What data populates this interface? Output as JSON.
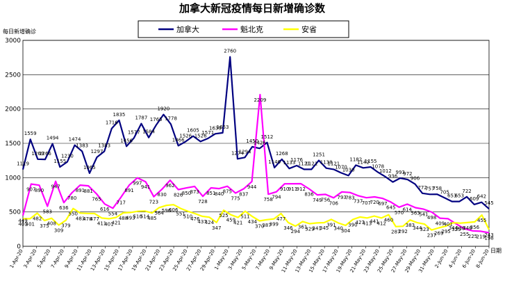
{
  "chart_data": {
    "type": "line",
    "title": "加拿大新冠疫情每日新增确诊数",
    "ylabel": "每日新增确诊",
    "xlabel": "日期",
    "ylim": [
      0,
      3000
    ],
    "yticks": [
      "0",
      "500",
      "1000",
      "1500",
      "2000",
      "2500",
      "3000"
    ],
    "grid": true,
    "legend_position": "top-center",
    "tick_labels": [
      "1-Apr-20",
      "3-Apr-20",
      "5-Apr-20",
      "7-Apr-20",
      "9-Apr-20",
      "11-Apr-20",
      "13-Apr-20",
      "15-Apr-20",
      "17-Apr-20",
      "19-Apr-20",
      "21-Apr-20",
      "23-Apr-20",
      "25-Apr-20",
      "27-Apr-20",
      "29-Apr-20",
      "1-May-20",
      "3-May-20",
      "5-May-20",
      "7-May-20",
      "9-May-20",
      "11-May-20",
      "13-May-20",
      "15-May-20",
      "17-May-20",
      "19-May-20",
      "21-May-20",
      "23-May-20",
      "25-May-20",
      "27-May-20",
      "29-May-20",
      "31-May-20",
      "2-Jun-20",
      "4-Jun-20",
      "6-Jun-20",
      "8-Jun-20"
    ],
    "series": [
      {
        "name": "加拿大",
        "color": "#000080",
        "values": [
          1119,
          1559,
          1269,
          1266,
          1494,
          1155,
          1230,
          1474,
          1383,
          1065,
          1297,
          1383,
          1716,
          1835,
          1456,
          1577,
          1787,
          1584,
          1765,
          1920,
          1778,
          1466,
          1526,
          1605,
          1526,
          1571,
          1639,
          1653,
          2760,
          1274,
          1294,
          1450,
          1426,
          1512,
          1146,
          1268,
          1133,
          1176,
          1121,
          1121,
          1251,
          1138,
          1121,
          1070,
          1030,
          1182,
          1142,
          1155,
          1078,
          1012,
          936,
          993,
          972,
          906,
          772,
          757,
          758,
          705,
          653,
          653,
          722,
          609,
          642,
          545
        ],
        "labels": [
          "1119",
          "1559",
          "1269",
          "1266",
          "1494",
          "1155",
          "1230",
          "1474",
          "1383",
          "1065",
          "1297",
          "1383",
          "1716",
          "1835",
          "1456",
          "1577",
          "1787",
          "1584",
          "1765",
          "1920",
          "1778",
          "1466",
          "1526",
          "1605",
          "1526",
          "1571",
          "1639",
          "1653",
          "2760",
          "1274",
          "1294",
          "1450",
          "1426",
          "1512",
          "1146",
          "1268",
          "1133",
          "1176",
          "1121",
          "1121",
          "1251",
          "1138",
          "1121",
          "1070",
          "1030",
          "1182",
          "1142",
          "1155",
          "1078",
          "1012",
          "936",
          "993",
          "972",
          "906",
          "772",
          "757",
          "758",
          "705",
          "653",
          "653",
          "722",
          "609",
          "642",
          "545"
        ]
      },
      {
        "name": "魁北克",
        "color": "#FF00FF",
        "values": [
          449,
          907,
          890,
          583,
          947,
          636,
          780,
          891,
          881,
          765,
          616,
          554,
          717,
          891,
          997,
          941,
          723,
          830,
          962,
          826,
          850,
          873,
          728,
          851,
          840,
          875,
          775,
          837,
          944,
          2209,
          758,
          794,
          910,
          911,
          912,
          836,
          749,
          756,
          706,
          793,
          783,
          737,
          707,
          720,
          697,
          645,
          570,
          614,
          563,
          541,
          498,
          409,
          401,
          325,
          255,
          225,
          219,
          198
        ],
        "labels": [
          "449",
          "907",
          "890",
          "583",
          "947",
          "636",
          "780",
          "891",
          "881",
          "765",
          "616",
          "554",
          "717",
          "891",
          "997",
          "941",
          "723",
          "830",
          "962",
          "826",
          "850",
          "873",
          "728",
          "851",
          "840",
          "875",
          "775",
          "837",
          "944",
          "2209",
          "758",
          "794",
          "910",
          "911",
          "912",
          "836",
          "749",
          "756",
          "706",
          "793",
          "783",
          "737",
          "707",
          "720",
          "697",
          "645",
          "570",
          "614",
          "563",
          "541",
          "498",
          "409",
          "401",
          "325",
          "255",
          "225",
          "219",
          "198"
        ]
      },
      {
        "name": "安省",
        "color": "#FFFF00",
        "values": [
          401,
          401,
          482,
          375,
          408,
          309,
          379,
          550,
          483,
          478,
          477,
          411,
          401,
          421,
          488,
          493,
          510,
          514,
          485,
          564,
          596,
          606,
          551,
          510,
          476,
          437,
          424,
          347,
          525,
          459,
          421,
          511,
          434,
          370,
          387,
          399,
          477,
          346,
          294,
          361,
          329,
          341,
          345,
          391,
          340,
          304,
          390,
          427,
          413,
          441,
          412,
          460,
          287,
          292,
          383,
          344,
          323,
          237,
          269,
          295,
          344,
          338,
          346,
          356,
          455,
          243
        ],
        "labels": [
          "401",
          "401",
          "482",
          "375",
          "408",
          "309",
          "379",
          "550",
          "483",
          "478",
          "477",
          "411",
          "401",
          "421",
          "488",
          "493",
          "510",
          "514",
          "485",
          "564",
          "596",
          "606",
          "551",
          "510",
          "476",
          "437",
          "424",
          "347",
          "525",
          "459",
          "421",
          "511",
          "434",
          "370",
          "387",
          "399",
          "477",
          "346",
          "294",
          "361",
          "329",
          "341",
          "345",
          "391",
          "340",
          "304",
          "390",
          "427",
          "413",
          "441",
          "412",
          "460",
          "287",
          "292",
          "383",
          "344",
          "323",
          "237",
          "269",
          "295",
          "344",
          "338",
          "346",
          "356",
          "455",
          "243"
        ]
      }
    ]
  }
}
